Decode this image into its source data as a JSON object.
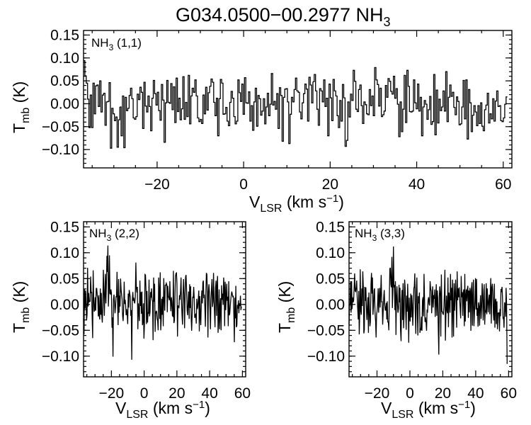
{
  "title": {
    "text": "G034.0500−00.2977 NH",
    "sub": "3"
  },
  "axis_text": {
    "ylabel_main": "T",
    "ylabel_sub": "mb",
    "ylabel_unit": " (K)",
    "xlabel_main": "V",
    "xlabel_sub": "LSR",
    "xlabel_unit": " (km s",
    "xlabel_exp": "−1",
    "xlabel_close": ")"
  },
  "chart_data": [
    {
      "type": "line",
      "panel": "top",
      "label": {
        "main": "NH",
        "sub": "3",
        "rest": " (1,1)"
      },
      "xlim": [
        -37,
        62
      ],
      "ylim": [
        -0.14,
        0.16
      ],
      "xticks": [
        -20,
        0,
        20,
        40,
        60
      ],
      "xtick_labels": [
        "−20",
        "0",
        "20",
        "40",
        "60"
      ],
      "yticks": [
        0.15,
        0.1,
        0.05,
        0.0,
        -0.05,
        -0.1
      ],
      "ytick_labels": [
        "0.15",
        "0.10",
        "0.05",
        "0.00",
        "−0.05",
        "−0.10"
      ],
      "step": true,
      "x_start": -37,
      "x_step": 0.31,
      "y": [
        0.094,
        0.061,
        0.045,
        0.01,
        -0.052,
        0.019,
        -0.052,
        0.045,
        -0.022,
        0.039,
        0.041,
        -0.006,
        0.05,
        -0.018,
        0.019,
        0.023,
        -0.047,
        0.004,
        0.005,
        0.046,
        -0.097,
        -0.01,
        -0.022,
        -0.037,
        -0.029,
        -0.095,
        -0.035,
        -0.007,
        -0.07,
        0.017,
        -0.096,
        0.014,
        -0.015,
        -0.01,
        0.018,
        0.034,
        0.011,
        -0.031,
        -0.034,
        -0.028,
        0.021,
        0.009,
        0.036,
        0.025,
        -0.054,
        0.047,
        -0.005,
        -0.018,
        0.017,
        -0.006,
        -0.059,
        0.012,
        0.051,
        0.022,
        -0.003,
        0.025,
        -0.015,
        -0.036,
        0.042,
        0.008,
        -0.084,
        0.002,
        0.051,
        0.003,
        0.001,
        0.044,
        -0.013,
        0.037,
        -0.041,
        0.056,
        -0.017,
        0.012,
        -0.035,
        -0.011,
        0.059,
        -0.034,
        0.003,
        -0.028,
        0.062,
        -0.044,
        0.017,
        0.034,
        0.025,
        0.052,
        0.017,
        -0.031,
        -0.039,
        -0.034,
        -0.043,
        0.019,
        -0.022,
        0.036,
        -0.014,
        0.024,
        0.038,
        0.054,
        0.047,
        0.003,
        -0.026,
        0.012,
        -0.07,
        0.011,
        0.053,
        0.045,
        -0.023,
        -0.022,
        -0.008,
        -0.038,
        -0.048,
        0.003,
        0.027,
        0.012,
        -0.028,
        -0.044,
        -0.038,
        0.052,
        0.024,
        0.005,
        0.043,
        -0.023,
        0.057,
        0.002,
        0.001,
        0.026,
        -0.038,
        -0.004,
        -0.058,
        0.004,
        0.034,
        -0.049,
        0.018,
        0.011,
        -0.025,
        -0.016,
        0.011,
        -0.044,
        -0.007,
        0.023,
        -0.026,
        -0.001,
        0.066,
        -0.003,
        0.005,
        -0.012,
        0.022,
        -0.054,
        0.035,
        0.018,
        -0.082,
        0.014,
        0.032,
        0.033,
        0.004,
        -0.087,
        -0.023,
        0.014,
        0.004,
        0.031,
        0.056,
        0.028,
        0.025,
        -0.018,
        -0.033,
        0.002,
        0.022,
        0.043,
        0.032,
        -0.038,
        0.058,
        0.041,
        0.002,
        0.048,
        0.064,
        0.028,
        -0.012,
        -0.047,
        0.033,
        0.028,
        0.004,
        0.052,
        -0.006,
        0.012,
        -0.07,
        0.043,
        0.013,
        -0.037,
        0.053,
        0.028,
        0.017,
        -0.026,
        -0.052,
        0.007,
        -0.038,
        0.042,
        0.013,
        -0.093,
        -0.08,
        0.004,
        -0.029,
        0.021,
        0.007,
        0.073,
        0.049,
        -0.012,
        -0.017,
        0.031,
        0.041,
        -0.004,
        -0.043,
        0.004,
        -0.002,
        -0.022,
        -0.024,
        0.031,
        -0.004,
        0.017,
        -0.026,
        0.079,
        0.052,
        0.042,
        -0.005,
        0.034,
        -0.028,
        -0.024,
        -0.016,
        0.04,
        0.014,
        0.055,
        0.049,
        0.027,
        0.021,
        0.06,
        0.012,
        0.033,
        -0.001,
        -0.072,
        0.004,
        -0.061,
        -0.012,
        0.062,
        -0.041,
        0.073,
        0.038,
        -0.017,
        -0.018,
        -0.016,
        0.052,
        0.002,
        -0.011,
        0.043,
        -0.016,
        0.014,
        -0.07,
        -0.007,
        0.007,
        -0.001,
        -0.034,
        -0.013,
        0.016,
        -0.045,
        -0.039,
        0.064,
        -0.068,
        0.03,
        -0.042,
        0.01,
        -0.015,
        -0.007,
        0.028,
        -0.016,
        0.07,
        -0.039,
        0.014,
        0.041,
        0.016,
        0.025,
        -0.008,
        -0.024,
        0.015,
        0.005,
        -0.046,
        -0.044,
        -0.007,
        0.051,
        -0.033,
        0.052,
        -0.077,
        0.031,
        0.002,
        -0.061,
        -0.025,
        -0.004,
        -0.018,
        -0.048,
        -0.004,
        -0.043,
        0.002,
        -0.049,
        -0.059,
        -0.013,
        -0.003,
        0.023,
        -0.042,
        -0.022,
        -0.033,
        0.011,
        -0.038,
        0.006,
        0.028,
        -0.006,
        -0.004,
        -0.037,
        -0.039,
        -0.031,
        -0.001,
        0.015
      ]
    },
    {
      "type": "line",
      "panel": "bottom-left",
      "label": {
        "main": "NH",
        "sub": "3",
        "rest": " (2,2)"
      },
      "xlim": [
        -37,
        62
      ],
      "ylim": [
        -0.14,
        0.16
      ],
      "xticks": [
        -20,
        0,
        20,
        40,
        60
      ],
      "xtick_labels": [
        "−20",
        "0",
        "20",
        "40",
        "60"
      ],
      "yticks": [
        0.15,
        0.1,
        0.05,
        0.0,
        -0.05,
        -0.1
      ],
      "ytick_labels": [
        "0.15",
        "0.10",
        "0.05",
        "0.00",
        "−0.05",
        "−0.10"
      ],
      "step": false,
      "x_start": -37,
      "x_step": 0.31,
      "y": [
        -0.028,
        -0.058,
        0.029,
        -0.008,
        0.027,
        0.002,
        -0.031,
        -0.019,
        0.071,
        -0.004,
        0.022,
        0.005,
        0.006,
        0.006,
        0.054,
        0.022,
        0.024,
        -0.027,
        -0.065,
        0.066,
        0.016,
        -0.014,
        -0.01,
        0.014,
        -0.012,
        0.031,
        0.031,
        0.017,
        0.012,
        -0.023,
        0.018,
        -0.022,
        -0.029,
        0.031,
        -0.02,
        0.022,
        -0.022,
        -0.035,
        -0.002,
        0.067,
        0.028,
        -0.022,
        0.018,
        0.059,
        0.002,
        0.04,
        0.094,
        0.063,
        0.114,
        -0.004,
        0.029,
        0.095,
        0.021,
        0.02,
        0.029,
        0.022,
        -0.045,
        -0.025,
        -0.101,
        0.009,
        0.019,
        0.005,
        -0.017,
        -0.004,
        0.016,
        0.014,
        0.063,
        0.008,
        -0.04,
        0.049,
        -0.016,
        0.017,
        -0.004,
        0.05,
        0.028,
        0.019,
        0.01,
        -0.022,
        -0.032,
        -0.012,
        0.044,
        0.001,
        0.009,
        -0.002,
        -0.021,
        -0.009,
        -0.02,
        -0.038,
        0.021,
        -0.006,
        0.028,
        0.021,
        0.014,
        -0.022,
        -0.011,
        -0.107,
        0.006,
        0.024,
        0.007,
        0.013,
        0.004,
        0.003,
        0.014,
        0.081,
        0.032,
        0.023,
        0.034,
        -0.048,
        0.002,
        -0.016,
        -0.032,
        0.046,
        -0.003,
        0.024,
        -0.018,
        0.025,
        -0.04,
        -0.033,
        0.002,
        -0.066,
        -0.04,
        0.058,
        0.057,
        0.03,
        -0.038,
        0.026,
        -0.035,
        -0.015,
        -0.018,
        0.048,
        -0.023,
        -0.015,
        0.024,
        0.013,
        0.031,
        0.009,
        0.006,
        -0.069,
        0.052,
        0.005,
        0.04,
        -0.053,
        -0.018,
        -0.013,
        -0.014,
        -0.027,
        -0.032,
        -0.05,
        0.052,
        0.03,
        -0.028,
        0.062,
        -0.05,
        -0.031,
        0.011,
        -0.02,
        0.015,
        -0.042,
        0.051,
        0.017,
        -0.012,
        0.037,
        0.037,
        0.041,
        0.038,
        -0.015,
        0.036,
        0.015,
        0.013,
        0.008,
        0.045,
        0.011,
        -0.013,
        0.014,
        0.005,
        -0.022,
        -0.023,
        0.065,
        -0.036,
        -0.031,
        0.015,
        0.054,
        0.06,
        0.061,
        0.042,
        -0.062,
        -0.002,
        -0.005,
        -0.006,
        0.018,
        0.009,
        0.026,
        0.052,
        0.003,
        -0.021,
        -0.039,
        0.02,
        0.049,
        0.019,
        -0.046,
        0.012,
        0.053,
        0.057,
        0.025,
        -0.011,
        -0.021,
        0.004,
        0.025,
        -0.028,
        0.039,
        -0.007,
        0.035,
        -0.025,
        -0.051,
        -0.016,
        0.015,
        0.012,
        0.034,
        0.013,
        -0.026,
        -0.021,
        -0.019,
        -0.037,
        0.011,
        -0.009,
        -0.005,
        0.01,
        0.027,
        -0.052,
        0.016,
        -0.022,
        -0.04,
        0.007,
        0.027,
        0.002,
        0.042,
        0.046,
        0.012,
        0.019,
        -0.007,
        -0.043,
        0.022,
        0.061,
        0.058,
        0.017,
        -0.064,
        0.025,
        0.039,
        0.022,
        -0.012,
        -0.048,
        0.01,
        0.03,
        0.049,
        -0.005,
        0.005,
        0.061,
        0.013,
        -0.019,
        -0.044,
        0.032,
        0.046,
        -0.022,
        0.035,
        0.055,
        -0.055,
        -0.031,
        0.029,
        -0.048,
        -0.006,
        0.012,
        -0.05,
        0.037,
        0.009,
        0.021,
        -0.001,
        0.052,
        0.035,
        -0.042,
        0.044,
        -0.011,
        0.012,
        0.04,
        0.007,
        0.015,
        -0.042,
        0.045,
        -0.021,
        -0.018,
        -0.004,
        0.01,
        0.019,
        0.025,
        0.02,
        0.014,
        0.017,
        -0.021,
        -0.073,
        0.013,
        -0.027,
        0.036,
        -0.044,
        -0.04,
        -0.001,
        -0.008,
        0.008,
        -0.017,
        0.002,
        -0.003,
        0.017,
        -0.011,
        -0.004
      ]
    },
    {
      "type": "line",
      "panel": "bottom-right",
      "label": {
        "main": "NH",
        "sub": "3",
        "rest": " (3,3)"
      },
      "xlim": [
        -37,
        62
      ],
      "ylim": [
        -0.14,
        0.16
      ],
      "xticks": [
        -20,
        0,
        20,
        40,
        60
      ],
      "xtick_labels": [
        "−20",
        "0",
        "20",
        "40",
        "60"
      ],
      "yticks": [
        0.15,
        0.1,
        0.05,
        0.0,
        -0.05,
        -0.1
      ],
      "ytick_labels": [
        "0.15",
        "0.10",
        "0.05",
        "0.00",
        "−0.05",
        "−0.10"
      ],
      "step": false,
      "x_start": -37,
      "x_step": 0.31,
      "y": [
        -0.039,
        -0.004,
        0.001,
        0.045,
        -0.016,
        0.045,
        -0.009,
        0.014,
        0.004,
        0.008,
        0.034,
        0.06,
        0.026,
        0.025,
        0.033,
        0.046,
        0.015,
        -0.008,
        -0.029,
        0.026,
        -0.058,
        -0.018,
        0.068,
        -0.013,
        -0.02,
        0.031,
        -0.003,
        0.064,
        0.034,
        -0.056,
        -0.049,
        0.034,
        0.007,
        0.033,
        -0.007,
        -0.03,
        -0.006,
        0.014,
        -0.055,
        0.023,
        -0.01,
        -0.042,
        -0.033,
        0.039,
        0.061,
        0.021,
        0.052,
        -0.02,
        -0.003,
        0.027,
        0.031,
        -0.016,
        -0.032,
        -0.064,
        -0.019,
        -0.013,
        0.0,
        0.031,
        -0.016,
        0.012,
        0.032,
        -0.006,
        0.023,
        0.057,
        0.004,
        0.006,
        -0.039,
        -0.012,
        0.015,
        0.028,
        0.0,
        -0.011,
        -0.011,
        0.003,
        -0.029,
        0.006,
        -0.034,
        -0.034,
        -0.05,
        0.01,
        0.069,
        0.071,
        0.039,
        0.033,
        0.092,
        -0.007,
        0.025,
        0.112,
        0.033,
        0.038,
        -0.011,
        0.045,
        -0.059,
        0.015,
        0.035,
        0.002,
        -0.016,
        -0.008,
        0.038,
        0.004,
        0.032,
        -0.049,
        -0.071,
        0.009,
        0.028,
        -0.03,
        0.041,
        -0.046,
        -0.017,
        0.048,
        0.033,
        -0.005,
        -0.049,
        0.017,
        -0.014,
        0.04,
        -0.003,
        -0.074,
        0.013,
        -0.027,
        -0.033,
        0.021,
        -0.025,
        0.018,
        0.0,
        -0.041,
        -0.011,
        0.031,
        0.035,
        0.06,
        -0.018,
        -0.057,
        0.029,
        0.052,
        -0.018,
        -0.06,
        0.016,
        0.002,
        0.023,
        -0.055,
        -0.046,
        -0.05,
        -0.024,
        -0.051,
        0.007,
        0.014,
        -0.023,
        0.059,
        0.013,
        -0.034,
        -0.025,
        -0.035,
        -0.051,
        -0.01,
        -0.016,
        0.008,
        0.014,
        0.001,
        -0.002,
        0.045,
        0.031,
        0.026,
        -0.017,
        0.011,
        0.035,
        -0.006,
        0.018,
        0.011,
        0.029,
        -0.024,
        0.005,
        0.039,
        -0.022,
        0.027,
        0.012,
        -0.044,
        -0.097,
        0.016,
        0.035,
        0.02,
        -0.062,
        0.058,
        -0.013,
        -0.014,
        -0.018,
        -0.019,
        -0.004,
        0.022,
        0.067,
        -0.07,
        -0.023,
        0.017,
        -0.011,
        -0.017,
        0.052,
        -0.044,
        0.023,
        0.007,
        -0.016,
        0.059,
        0.008,
        0.032,
        -0.064,
        0.048,
        -0.005,
        -0.062,
        0.041,
        -0.012,
        0.016,
        0.048,
        0.01,
        -0.045,
        0.064,
        0.008,
        0.031,
        0.014,
        0.033,
        0.008,
        -0.01,
        -0.027,
        0.055,
        0.014,
        0.024,
        -0.022,
        0.021,
        0.029,
        -0.042,
        0.059,
        -0.033,
        0.016,
        0.029,
        0.006,
        0.03,
        0.036,
        -0.026,
        0.027,
        -0.015,
        0.032,
        0.025,
        -0.051,
        0.028,
        0.043,
        -0.041,
        0.011,
        0.048,
        -0.042,
        -0.015,
        0.008,
        0.051,
        -0.01,
        0.049,
        -0.022,
        -0.007,
        -0.043,
        0.004,
        -0.004,
        -0.041,
        0.001,
        0.018,
        -0.028,
        -0.005,
        0.041,
        0.028,
        -0.031,
        -0.001,
        0.039,
        -0.039,
        -0.011,
        -0.016,
        0.041,
        -0.019,
        0.031,
        0.007,
        -0.015,
        0.008,
        0.019,
        -0.019,
        0.021,
        0.051,
        -0.037,
        0.033,
        0.04,
        0.024,
        -0.018,
        -0.031,
        0.04,
        -0.045,
        0.006,
        0.011,
        -0.038,
        0.006,
        -0.048,
        -0.018,
        -0.016,
        -0.016,
        -0.052,
        -0.009,
        -0.023,
        0.03,
        0.024,
        0.034,
        0.011,
        -0.028,
        -0.024,
        -0.045,
        0.004,
        -0.001,
        -0.024,
        0.032,
        0.002,
        -0.115
      ]
    }
  ]
}
